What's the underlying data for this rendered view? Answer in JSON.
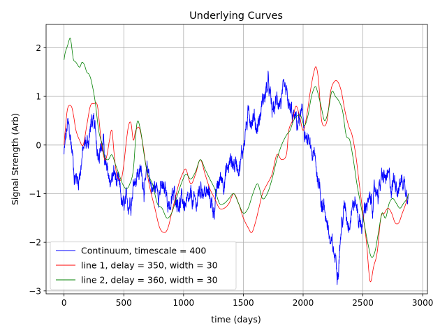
{
  "chart_data": {
    "type": "line",
    "title": "Underlying Curves",
    "xlabel": "time (days)",
    "ylabel": "Signal Strength (Arb)",
    "xlim": [
      -150,
      3040
    ],
    "ylim": [
      -3.06,
      2.48
    ],
    "xticks": [
      0,
      500,
      1000,
      1500,
      2000,
      2500,
      3000
    ],
    "yticks": [
      -3,
      -2,
      -1,
      0,
      1,
      2
    ],
    "grid": true,
    "legend_position": "lower-left",
    "series": [
      {
        "name": "Continuum, timescale = 400",
        "color": "#0000ff",
        "noise": 0.22,
        "x": [
          0,
          30,
          60,
          90,
          120,
          150,
          180,
          200,
          230,
          250,
          280,
          300,
          330,
          360,
          390,
          420,
          450,
          480,
          500,
          530,
          560,
          590,
          620,
          650,
          680,
          710,
          740,
          770,
          800,
          830,
          860,
          890,
          920,
          950,
          980,
          1010,
          1040,
          1070,
          1100,
          1130,
          1160,
          1190,
          1220,
          1250,
          1280,
          1310,
          1340,
          1370,
          1400,
          1430,
          1460,
          1490,
          1520,
          1550,
          1580,
          1610,
          1640,
          1660,
          1690,
          1710,
          1740,
          1770,
          1800,
          1830,
          1860,
          1890,
          1920,
          1950,
          1980,
          2000,
          2030,
          2060,
          2090,
          2120,
          2150,
          2180,
          2200,
          2230,
          2260,
          2290,
          2320,
          2350,
          2380,
          2410,
          2440,
          2470,
          2500,
          2530,
          2560,
          2590,
          2620,
          2650,
          2680,
          2710,
          2740,
          2770,
          2800,
          2830,
          2860,
          2880
        ],
        "y": [
          -0.2,
          0.35,
          0.0,
          -0.6,
          -0.7,
          -0.2,
          0.0,
          0.05,
          0.5,
          0.3,
          -0.1,
          0.1,
          0.0,
          -0.7,
          -0.75,
          -0.6,
          -0.9,
          -1.2,
          -1.4,
          -1.3,
          -1.0,
          -0.6,
          -0.5,
          -0.6,
          -0.8,
          -0.6,
          -0.9,
          -0.9,
          -0.8,
          -1.0,
          -1.1,
          -1.2,
          -1.1,
          -1.0,
          -1.2,
          -1.2,
          -1.4,
          -1.2,
          -1.3,
          -1.0,
          -0.8,
          -1.0,
          -1.1,
          -1.3,
          -1.0,
          -0.7,
          -0.6,
          -0.5,
          -0.3,
          -0.4,
          -0.3,
          -0.2,
          0.4,
          0.6,
          0.7,
          0.4,
          0.6,
          0.9,
          1.1,
          1.2,
          0.6,
          0.8,
          1.0,
          0.9,
          0.8,
          0.6,
          0.5,
          0.4,
          0.6,
          0.4,
          0.1,
          -0.2,
          -0.3,
          -0.6,
          -1.0,
          -1.3,
          -1.5,
          -2.1,
          -2.3,
          -2.4,
          -1.6,
          -1.3,
          -1.5,
          -1.1,
          -1.2,
          -1.5,
          -1.6,
          -1.1,
          -1.3,
          -1.1,
          -0.9,
          -0.8,
          -0.7,
          -0.8,
          -0.9,
          -0.6,
          -0.8,
          -0.7,
          -0.8,
          -0.75
        ],
        "width": 0.9
      },
      {
        "name": "line 1, delay = 350, width = 30",
        "color": "#ff0000",
        "x": [
          0,
          10,
          30,
          60,
          80,
          100,
          130,
          160,
          190,
          220,
          250,
          280,
          310,
          340,
          360,
          380,
          400,
          420,
          440,
          460,
          480,
          500,
          520,
          540,
          560,
          580,
          600,
          630,
          660,
          690,
          720,
          760,
          800,
          840,
          870,
          900,
          930,
          960,
          990,
          1020,
          1060,
          1100,
          1140,
          1180,
          1220,
          1260,
          1300,
          1340,
          1380,
          1420,
          1460,
          1500,
          1540,
          1570,
          1600,
          1630,
          1660,
          1700,
          1740,
          1780,
          1820,
          1860,
          1880,
          1910,
          1940,
          1970,
          2000,
          2030,
          2060,
          2090,
          2110,
          2130,
          2150,
          2170,
          2200,
          2230,
          2260,
          2290,
          2320,
          2350,
          2380,
          2410,
          2440,
          2470,
          2500,
          2530,
          2560,
          2590,
          2620,
          2650,
          2680,
          2710,
          2740,
          2770,
          2800,
          2830,
          2860,
          2880
        ],
        "y": [
          0.0,
          0.3,
          0.75,
          0.8,
          0.6,
          0.3,
          0.1,
          0.0,
          0.4,
          0.8,
          0.85,
          0.8,
          0.1,
          -0.3,
          -0.2,
          0.1,
          0.3,
          -0.2,
          -0.6,
          -0.7,
          -0.7,
          -0.4,
          0.05,
          0.4,
          0.45,
          0.1,
          0.3,
          0.35,
          0.0,
          -0.5,
          -0.9,
          -1.3,
          -1.7,
          -1.8,
          -1.7,
          -1.4,
          -1.1,
          -0.8,
          -0.6,
          -0.5,
          -0.8,
          -0.6,
          -0.3,
          -0.6,
          -0.9,
          -1.1,
          -1.3,
          -1.3,
          -1.2,
          -1.0,
          -1.2,
          -1.5,
          -1.7,
          -1.8,
          -1.6,
          -1.3,
          -1.0,
          -0.8,
          -0.6,
          -0.2,
          -0.3,
          -0.2,
          0.3,
          0.5,
          0.8,
          0.6,
          0.3,
          0.6,
          1.1,
          1.5,
          1.6,
          1.3,
          0.6,
          0.4,
          0.5,
          1.1,
          1.3,
          1.3,
          1.1,
          0.7,
          0.4,
          0.2,
          -0.2,
          -0.8,
          -1.4,
          -2.0,
          -2.8,
          -2.5,
          -2.2,
          -1.5,
          -1.4,
          -1.3,
          -1.4,
          -1.6,
          -1.6,
          -1.4,
          -1.2,
          -1.0
        ],
        "width": 0.8
      },
      {
        "name": "line 2, delay = 360, width = 30",
        "color": "#008000",
        "x": [
          0,
          10,
          30,
          50,
          60,
          70,
          80,
          100,
          130,
          150,
          170,
          190,
          210,
          230,
          260,
          290,
          320,
          340,
          370,
          400,
          430,
          460,
          490,
          520,
          550,
          580,
          610,
          640,
          670,
          700,
          740,
          780,
          820,
          860,
          900,
          940,
          980,
          1020,
          1060,
          1100,
          1140,
          1180,
          1220,
          1260,
          1300,
          1340,
          1380,
          1420,
          1460,
          1500,
          1540,
          1580,
          1620,
          1660,
          1700,
          1740,
          1780,
          1820,
          1860,
          1890,
          1920,
          1950,
          1980,
          2010,
          2040,
          2070,
          2100,
          2120,
          2150,
          2180,
          2210,
          2240,
          2270,
          2300,
          2330,
          2360,
          2390,
          2420,
          2450,
          2480,
          2510,
          2540,
          2570,
          2600,
          2630,
          2660,
          2690,
          2720,
          2750,
          2780,
          2810,
          2840,
          2870,
          2880
        ],
        "y": [
          1.75,
          1.9,
          2.05,
          2.2,
          2.1,
          1.9,
          1.75,
          1.7,
          1.6,
          1.7,
          1.65,
          1.5,
          1.45,
          1.3,
          0.9,
          0.3,
          0.0,
          -0.25,
          -0.3,
          -0.2,
          -0.4,
          -0.6,
          -0.8,
          -0.9,
          -0.8,
          -0.5,
          0.45,
          0.3,
          -0.2,
          -0.6,
          -0.8,
          -1.2,
          -1.3,
          -1.5,
          -1.4,
          -1.1,
          -0.8,
          -0.6,
          -0.7,
          -0.55,
          -0.3,
          -0.5,
          -0.7,
          -0.9,
          -1.2,
          -1.2,
          -1.1,
          -1.0,
          -1.2,
          -1.4,
          -1.3,
          -1.0,
          -0.8,
          -1.1,
          -1.0,
          -0.7,
          -0.3,
          0.0,
          0.2,
          0.3,
          0.5,
          0.6,
          0.6,
          0.4,
          0.6,
          1.0,
          1.2,
          1.1,
          0.8,
          0.5,
          0.7,
          1.1,
          1.0,
          0.9,
          0.7,
          0.2,
          0.1,
          -0.3,
          -0.8,
          -1.2,
          -1.6,
          -2.0,
          -2.3,
          -2.2,
          -1.8,
          -1.4,
          -1.5,
          -1.2,
          -1.1,
          -1.2,
          -1.3,
          -1.2,
          -1.1,
          -1.0
        ],
        "width": 0.8
      }
    ]
  }
}
